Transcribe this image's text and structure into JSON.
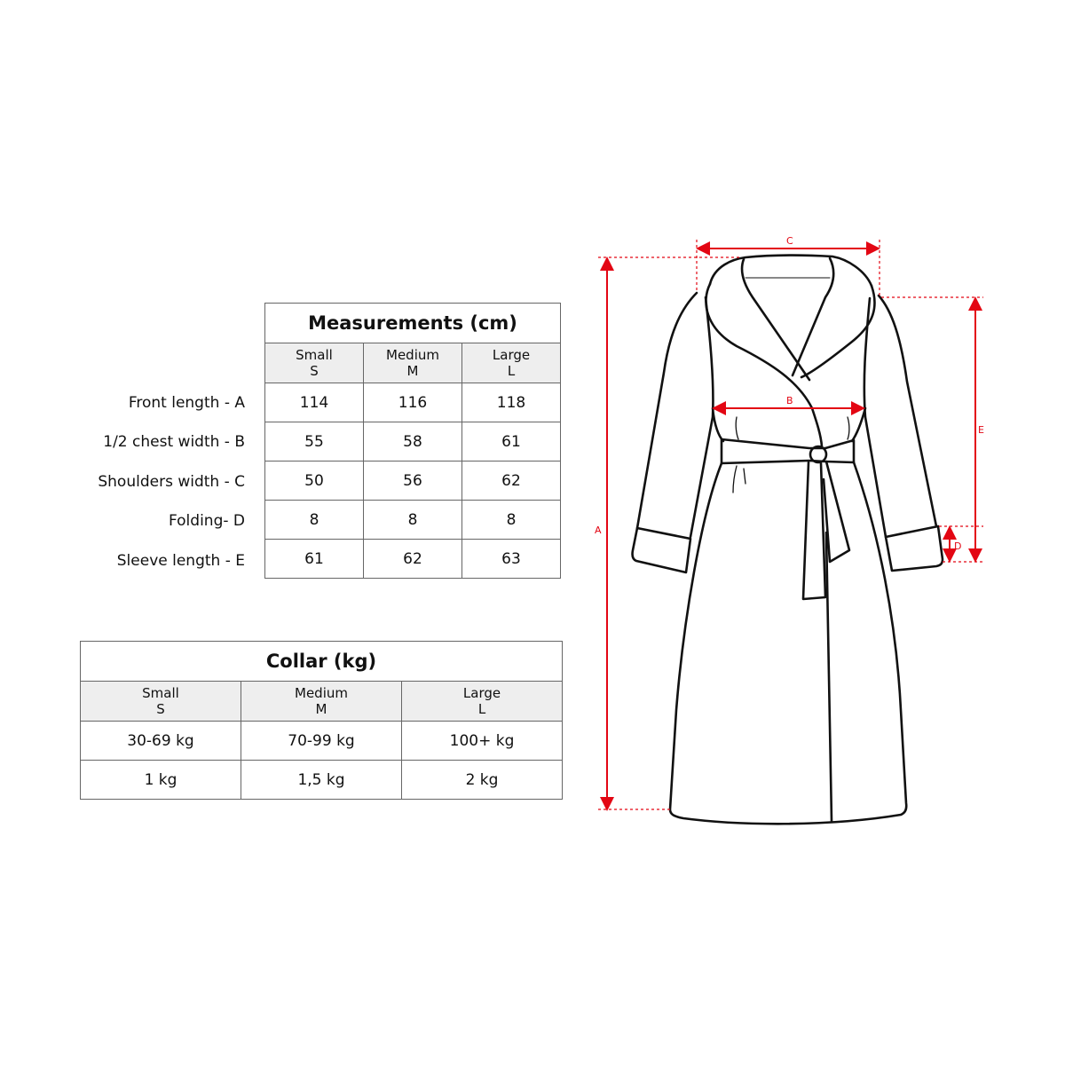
{
  "measurements": {
    "title": "Measurements (cm)",
    "sizes": [
      {
        "name": "Small",
        "code": "S"
      },
      {
        "name": "Medium",
        "code": "M"
      },
      {
        "name": "Large",
        "code": "L"
      }
    ],
    "rows": [
      {
        "label": "Front length - A",
        "values": [
          "114",
          "116",
          "118"
        ]
      },
      {
        "label": "1/2 chest width - B",
        "values": [
          "55",
          "58",
          "61"
        ]
      },
      {
        "label": "Shoulders width - C",
        "values": [
          "50",
          "56",
          "62"
        ]
      },
      {
        "label": "Folding- D",
        "values": [
          "8",
          "8",
          "8"
        ]
      },
      {
        "label": "Sleeve length - E",
        "values": [
          "61",
          "62",
          "63"
        ]
      }
    ]
  },
  "collar": {
    "title": "Collar (kg)",
    "sizes": [
      {
        "name": "Small",
        "code": "S"
      },
      {
        "name": "Medium",
        "code": "M"
      },
      {
        "name": "Large",
        "code": "L"
      }
    ],
    "rows": [
      [
        "30-69 kg",
        "70-99 kg",
        "100+ kg"
      ],
      [
        "1 kg",
        "1,5 kg",
        "2 kg"
      ]
    ]
  },
  "diagram": {
    "dimension_color": "#e30613",
    "labels": {
      "a": "A",
      "b": "B",
      "c": "C",
      "d": "D",
      "e": "E"
    }
  }
}
